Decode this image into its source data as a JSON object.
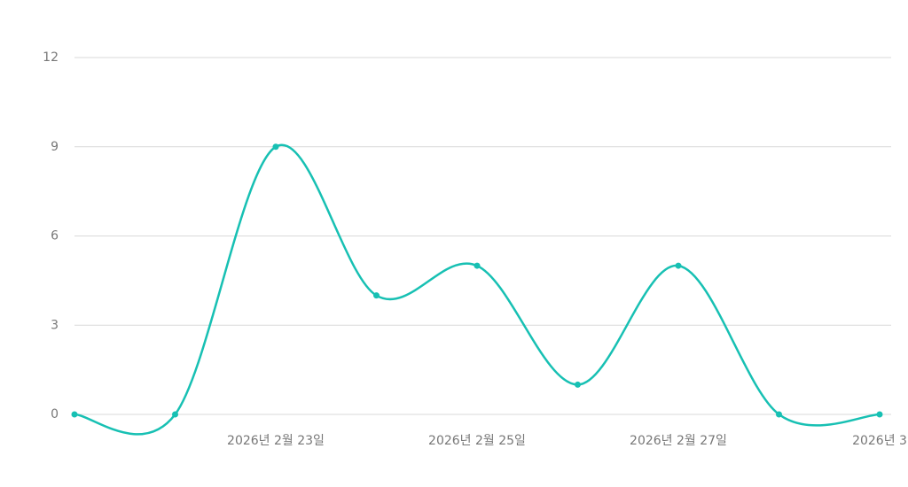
{
  "chart_data": {
    "type": "line",
    "categories": [
      null,
      null,
      "2026년 2월 23일",
      null,
      "2026년 2월 25일",
      null,
      "2026년 2월 27일",
      null,
      "2026년 3"
    ],
    "series": [
      {
        "color": "#17c0b3",
        "values": [
          0,
          0,
          9,
          4,
          5,
          1,
          5,
          0,
          0
        ]
      }
    ],
    "ylim": [
      0,
      12
    ],
    "yticks": [
      0,
      3,
      6,
      9,
      12
    ],
    "grid": true,
    "smooth": true
  }
}
